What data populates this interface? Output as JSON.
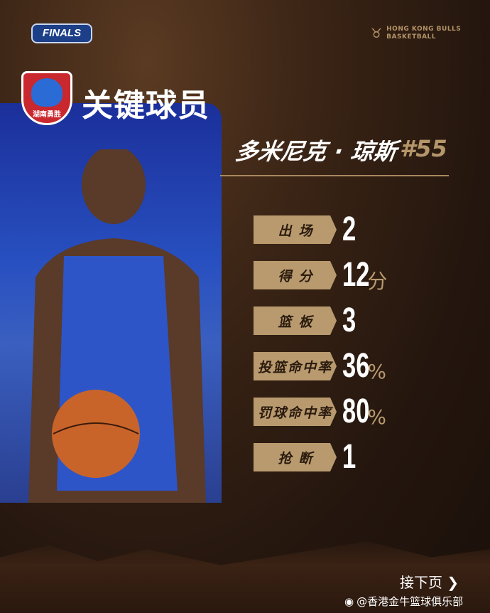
{
  "header": {
    "event_logo": "FINALS",
    "club_name_line1": "HONG KONG BULLS",
    "club_name_line2": "BASKETBALL"
  },
  "team_logo_text": "湖南勇胜",
  "title": "关键球员",
  "player": {
    "name": "多米尼克 · 琼斯",
    "number": "#55"
  },
  "stats": [
    {
      "label": "出场",
      "value": "2",
      "unit": ""
    },
    {
      "label": "得分",
      "value": "12",
      "unit": "分"
    },
    {
      "label": "篮板",
      "value": "3",
      "unit": ""
    },
    {
      "label": "投篮命中率",
      "value": "36",
      "unit": "%"
    },
    {
      "label": "罚球命中率",
      "value": "80",
      "unit": "%"
    },
    {
      "label": "抢断",
      "value": "1",
      "unit": ""
    }
  ],
  "footer": {
    "next_page": "接下页",
    "weibo_handle": "@香港金牛篮球俱乐部"
  },
  "colors": {
    "gold": "#b89a6e",
    "panel_blue": "#2850c0",
    "background": "#2a1a10"
  }
}
